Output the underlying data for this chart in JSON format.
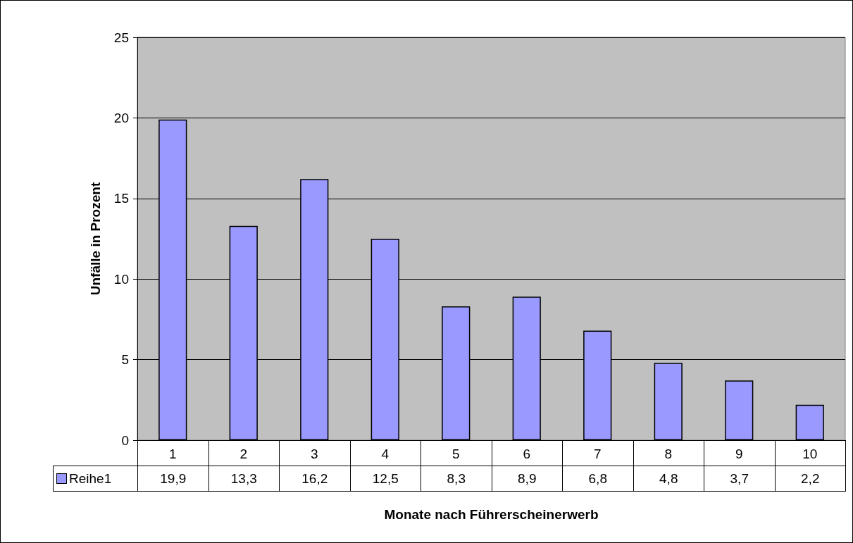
{
  "chart_data": {
    "type": "bar",
    "xlabel": "Monate nach Führerscheinerwerb",
    "ylabel": "Unfälle in Prozent",
    "categories": [
      "1",
      "2",
      "3",
      "4",
      "5",
      "6",
      "7",
      "8",
      "9",
      "10"
    ],
    "series": [
      {
        "name": "Reihe1",
        "color": "#9999ff",
        "values": [
          19.9,
          13.3,
          16.2,
          12.5,
          8.3,
          8.9,
          6.8,
          4.8,
          3.7,
          2.2
        ],
        "value_labels": [
          "19,9",
          "13,3",
          "16,2",
          "12,5",
          "8,3",
          "8,9",
          "6,8",
          "4,8",
          "3,7",
          "2,2"
        ]
      }
    ],
    "ylim": [
      0,
      25
    ],
    "yticks": [
      0,
      5,
      10,
      15,
      20,
      25
    ],
    "grid": "y",
    "legend": "bottom left"
  }
}
